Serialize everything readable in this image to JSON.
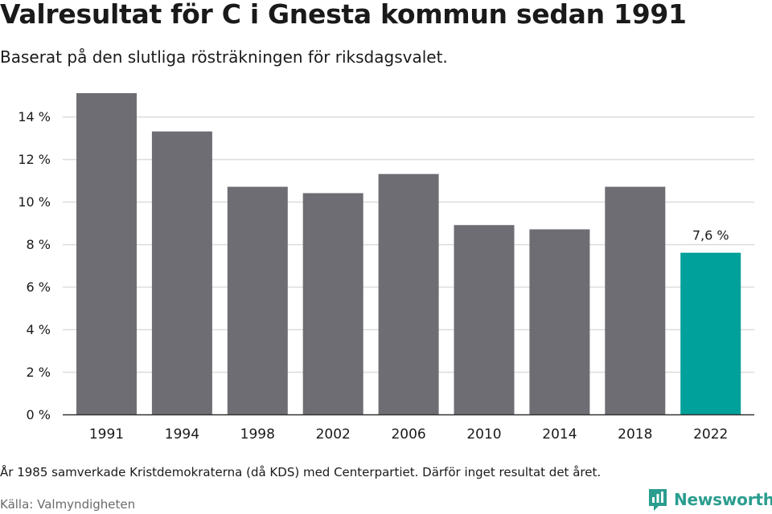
{
  "title": "Valresultat för C i Gnesta kommun sedan 1991",
  "subtitle": "Baserat på den slutliga rösträkningen för riksdagsvalet.",
  "note": "År 1985 samverkade Kristdemokraterna (då KDS) med Centerpartiet. Därför inget resultat det året.",
  "source": "Källa: Valmyndigheten",
  "brand": {
    "name": "Newsworthy",
    "icon": "newsworthy-logo-icon",
    "color": "#2a9d8f"
  },
  "colors": {
    "bar": "#6e6d73",
    "highlight": "#00a19a",
    "grid": "#dcdcdc",
    "axis": "#333333",
    "text": "#1a1a1a"
  },
  "chart_data": {
    "type": "bar",
    "categories": [
      "1991",
      "1994",
      "1998",
      "2002",
      "2006",
      "2010",
      "2014",
      "2018",
      "2022"
    ],
    "values": [
      15.1,
      13.3,
      10.7,
      10.4,
      11.3,
      8.9,
      8.7,
      10.7,
      7.6
    ],
    "yticks": [
      "0 %",
      "2 %",
      "4 %",
      "6 %",
      "8 %",
      "10 %",
      "12 %",
      "14 %"
    ],
    "ylim": [
      0,
      15.1
    ],
    "grid": true,
    "highlight_index": 8,
    "data_labels": [
      {
        "index": 8,
        "text": "7,6 %"
      }
    ]
  }
}
